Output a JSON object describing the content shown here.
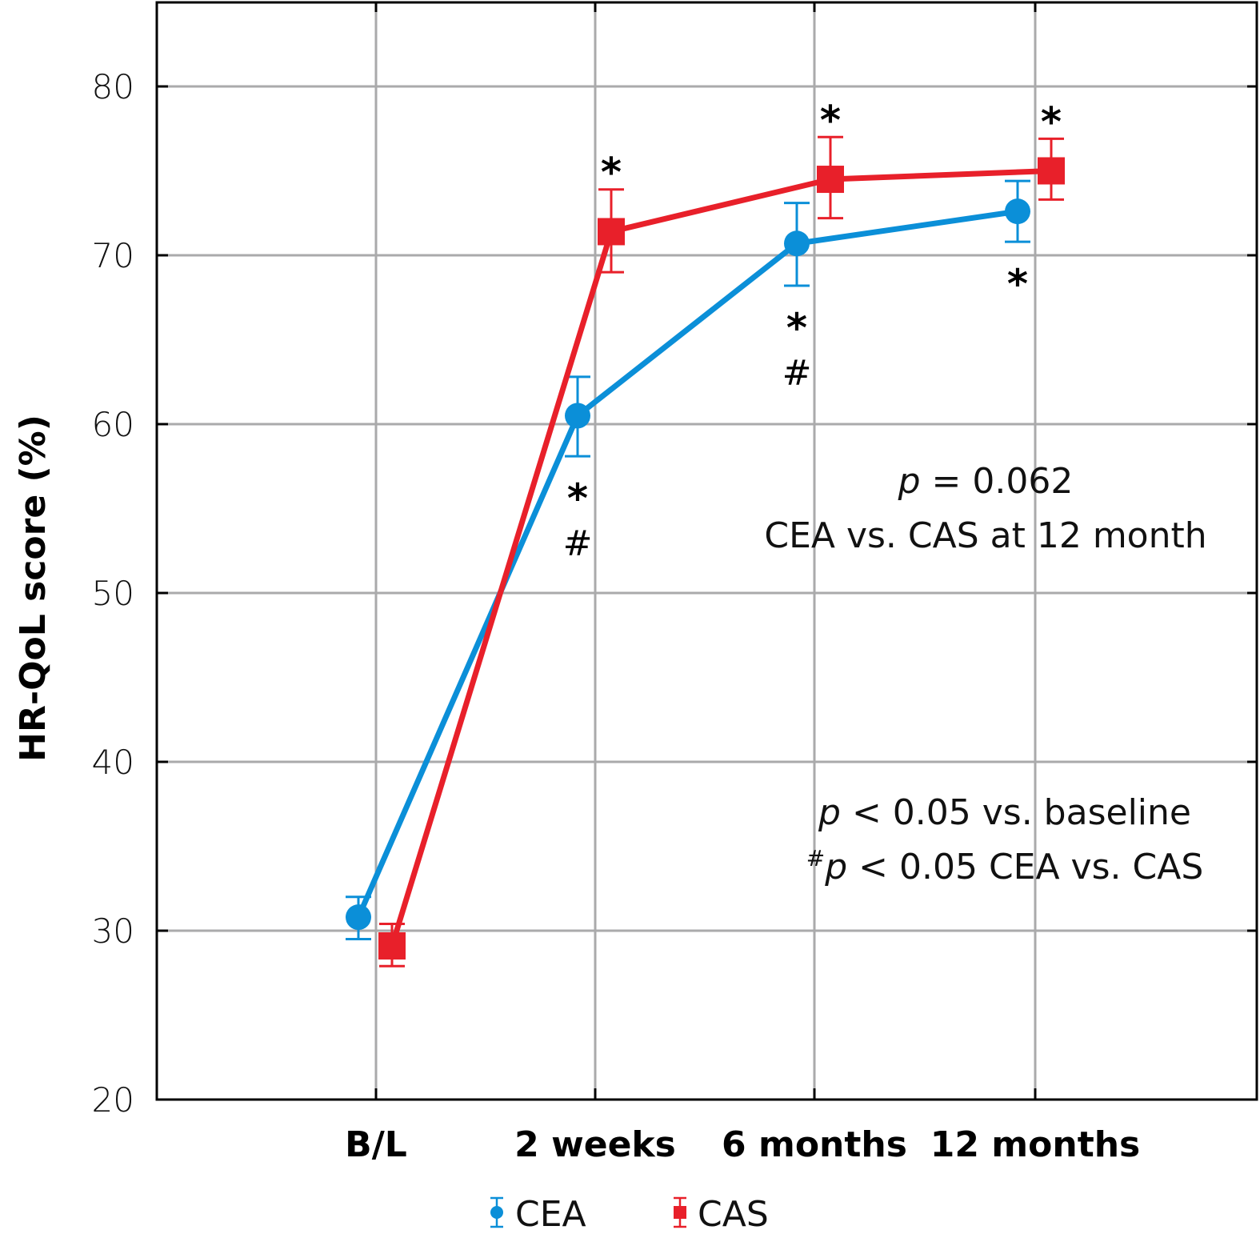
{
  "chart_data": {
    "type": "line",
    "title": "",
    "xlabel": "",
    "ylabel": "HR-QoL score (%)",
    "ylim": [
      20,
      85
    ],
    "yticks": [
      20,
      30,
      40,
      50,
      60,
      70,
      80
    ],
    "ytick_labels": [
      "20",
      "30",
      "40",
      "50",
      "60",
      "70",
      "80"
    ],
    "categories": [
      "B/L",
      "2 weeks",
      "6 months",
      "12 months"
    ],
    "grid": true,
    "series": [
      {
        "name": "CEA",
        "color": "#0b8fd8",
        "marker": "circle",
        "values": [
          30.8,
          60.5,
          70.7,
          72.6
        ],
        "error_upper": [
          32.0,
          62.8,
          73.1,
          74.4
        ],
        "error_lower": [
          29.5,
          58.1,
          68.2,
          70.8
        ]
      },
      {
        "name": "CAS",
        "color": "#e8202a",
        "marker": "square",
        "values": [
          29.1,
          71.4,
          74.5,
          75.0
        ],
        "error_upper": [
          30.4,
          73.9,
          77.0,
          76.9
        ],
        "error_lower": [
          27.9,
          69.0,
          72.2,
          73.3
        ]
      }
    ],
    "significance_marks": [
      {
        "category": "2 weeks",
        "series": "CAS",
        "position": "above",
        "symbols": [
          "*"
        ]
      },
      {
        "category": "2 weeks",
        "series": "CEA",
        "position": "below",
        "symbols": [
          "*",
          "#"
        ]
      },
      {
        "category": "6 months",
        "series": "CAS",
        "position": "above",
        "symbols": [
          "*"
        ]
      },
      {
        "category": "6 months",
        "series": "CEA",
        "position": "below",
        "symbols": [
          "*",
          "#"
        ]
      },
      {
        "category": "12 months",
        "series": "CAS",
        "position": "above",
        "symbols": [
          "*"
        ]
      },
      {
        "category": "12 months",
        "series": "CEA",
        "position": "below",
        "symbols": [
          "*"
        ]
      }
    ],
    "annotations": {
      "pvalue_line1_italic": "p",
      "pvalue_line1_rest": " = 0.062",
      "pvalue_line2": "CEA vs. CAS at 12 month",
      "footnote1_italic": "p",
      "footnote1_rest": " < 0.05 vs. baseline",
      "footnote2_prefix": "#",
      "footnote2_italic": "p",
      "footnote2_rest": " < 0.05 CEA vs. CAS"
    },
    "legend": {
      "position": "bottom-center",
      "entries": [
        "CEA",
        "CAS"
      ]
    }
  }
}
